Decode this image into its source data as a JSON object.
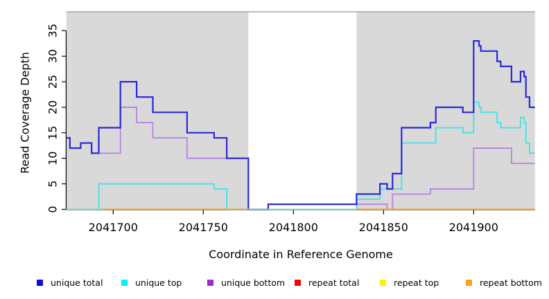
{
  "chart_data": {
    "type": "line",
    "subtype": "step-after",
    "title": "",
    "xlabel": "Coordinate in Reference Genome",
    "ylabel": "Read Coverage Depth",
    "xlim": [
      2041674,
      2041934
    ],
    "ylim": [
      0,
      38.7
    ],
    "x_ticks": [
      2041700,
      2041750,
      2041800,
      2041850,
      2041900
    ],
    "y_ticks": [
      0,
      5,
      10,
      15,
      20,
      25,
      30,
      35
    ],
    "grid": "off",
    "legend_position": "bottom",
    "highlight_color": "#d9d9d9",
    "highlight_regions": [
      {
        "from": 2041674,
        "to": 2041775
      },
      {
        "from": 2041835,
        "to": 2041934
      }
    ],
    "series": [
      {
        "name": "unique total",
        "color": "#2828dc",
        "legend_color": "#0b0bea",
        "points": [
          [
            2041674,
            14
          ],
          [
            2041676,
            12
          ],
          [
            2041682,
            13
          ],
          [
            2041688,
            11
          ],
          [
            2041692,
            16
          ],
          [
            2041704,
            25
          ],
          [
            2041713,
            22
          ],
          [
            2041722,
            19
          ],
          [
            2041741,
            15
          ],
          [
            2041756,
            14
          ],
          [
            2041763,
            10
          ],
          [
            2041775,
            0
          ],
          [
            2041786,
            1
          ],
          [
            2041835,
            3
          ],
          [
            2041848,
            5
          ],
          [
            2041852,
            4
          ],
          [
            2041855,
            7
          ],
          [
            2041860,
            16
          ],
          [
            2041876,
            17
          ],
          [
            2041879,
            20
          ],
          [
            2041894,
            19
          ],
          [
            2041900,
            33
          ],
          [
            2041903,
            32
          ],
          [
            2041904,
            31
          ],
          [
            2041913,
            29
          ],
          [
            2041915,
            28
          ],
          [
            2041921,
            25
          ],
          [
            2041926,
            27
          ],
          [
            2041928,
            26
          ],
          [
            2041929,
            22
          ],
          [
            2041931,
            20
          ]
        ]
      },
      {
        "name": "unique top",
        "color": "#4fe1e6",
        "legend_color": "#00f2f2",
        "points": [
          [
            2041674,
            0
          ],
          [
            2041692,
            5
          ],
          [
            2041756,
            4
          ],
          [
            2041763,
            0
          ],
          [
            2041835,
            2
          ],
          [
            2041848,
            4
          ],
          [
            2041860,
            13
          ],
          [
            2041879,
            16
          ],
          [
            2041894,
            15
          ],
          [
            2041900,
            21
          ],
          [
            2041903,
            20
          ],
          [
            2041904,
            19
          ],
          [
            2041913,
            17
          ],
          [
            2041915,
            16
          ],
          [
            2041926,
            18
          ],
          [
            2041928,
            17
          ],
          [
            2041929,
            13
          ],
          [
            2041931,
            11
          ]
        ]
      },
      {
        "name": "unique bottom",
        "color": "#bb84e4",
        "legend_color": "#9c2bd2",
        "points": [
          [
            2041674,
            14
          ],
          [
            2041676,
            12
          ],
          [
            2041682,
            13
          ],
          [
            2041688,
            11
          ],
          [
            2041692,
            11
          ],
          [
            2041704,
            20
          ],
          [
            2041713,
            17
          ],
          [
            2041722,
            14
          ],
          [
            2041741,
            10
          ],
          [
            2041775,
            0
          ],
          [
            2041786,
            1
          ],
          [
            2041852,
            0
          ],
          [
            2041855,
            3
          ],
          [
            2041876,
            4
          ],
          [
            2041900,
            12
          ],
          [
            2041921,
            9
          ]
        ]
      },
      {
        "name": "repeat total",
        "color": "#e60808",
        "legend_color": "#f00404",
        "points": [
          [
            2041674,
            0
          ]
        ]
      },
      {
        "name": "repeat top",
        "color": "#f5ef11",
        "legend_color": "#fbf201",
        "points": [
          [
            2041674,
            0
          ]
        ]
      },
      {
        "name": "repeat bottom",
        "color": "#ffa42e",
        "legend_color": "#ff9f1a",
        "points": [
          [
            2041674,
            0
          ]
        ]
      }
    ],
    "baseline_overlap_segments": [
      {
        "from": 2041674,
        "to": 2041695,
        "color": "#92d8a6"
      },
      {
        "from": 2041695,
        "to": 2041775,
        "color": "#ffa42e"
      },
      {
        "from": 2041775,
        "to": 2041835,
        "color": "#92d8a6"
      },
      {
        "from": 2041835,
        "to": 2041934,
        "color": "#ffa42e"
      }
    ]
  }
}
